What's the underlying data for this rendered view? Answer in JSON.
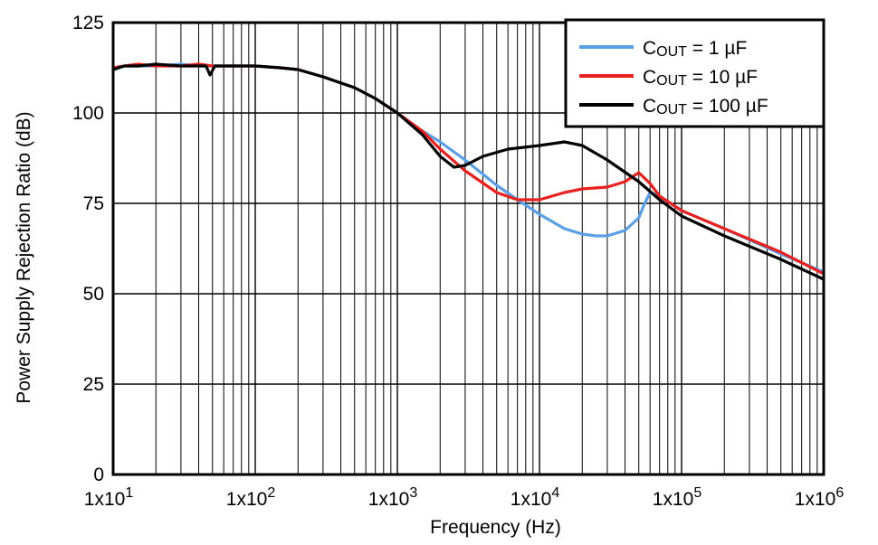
{
  "chart_data": {
    "type": "line",
    "title": "",
    "xlabel": "Frequency (Hz)",
    "ylabel": "Power Supply Rejection Ratio (dB)",
    "x_scale": "log",
    "xlim": [
      10,
      1000000
    ],
    "ylim": [
      0,
      125
    ],
    "grid": true,
    "legend_position": "top-right",
    "x_ticks": [
      {
        "value": 10,
        "label": "1x10"
      },
      {
        "value": 100,
        "label": "1x10"
      },
      {
        "value": 1000,
        "label": "1x10"
      },
      {
        "value": 10000,
        "label": "1x10"
      },
      {
        "value": 100000,
        "label": "1x10"
      },
      {
        "value": 1000000,
        "label": "1x10"
      }
    ],
    "x_tick_exponents": [
      "1",
      "2",
      "3",
      "4",
      "5",
      "6"
    ],
    "y_ticks": [
      0,
      25,
      50,
      75,
      100,
      125
    ],
    "series": [
      {
        "name": "C",
        "name_sub": "OUT",
        "name_suffix": " = 1 µF",
        "color": "#5aa0e6",
        "points": [
          [
            10,
            112
          ],
          [
            12,
            113
          ],
          [
            15,
            113
          ],
          [
            20,
            113
          ],
          [
            30,
            113.5
          ],
          [
            40,
            113
          ],
          [
            50,
            113
          ],
          [
            70,
            113
          ],
          [
            100,
            113
          ],
          [
            150,
            112.5
          ],
          [
            200,
            112
          ],
          [
            300,
            110
          ],
          [
            500,
            107
          ],
          [
            700,
            104
          ],
          [
            1000,
            100
          ],
          [
            1500,
            95
          ],
          [
            2000,
            92
          ],
          [
            3000,
            87
          ],
          [
            5000,
            80
          ],
          [
            7000,
            76
          ],
          [
            10000,
            72
          ],
          [
            15000,
            68
          ],
          [
            20000,
            66.5
          ],
          [
            25000,
            66
          ],
          [
            30000,
            66
          ],
          [
            40000,
            67.5
          ],
          [
            50000,
            71
          ],
          [
            55000,
            75
          ],
          [
            60000,
            78
          ],
          [
            70000,
            77
          ],
          [
            100000,
            73
          ],
          [
            200000,
            68
          ],
          [
            500000,
            61
          ],
          [
            1000000,
            56
          ]
        ]
      },
      {
        "name": "C",
        "name_sub": "OUT",
        "name_suffix": " = 10 µF",
        "color": "#e8201e",
        "points": [
          [
            10,
            112.5
          ],
          [
            12,
            113
          ],
          [
            15,
            113.5
          ],
          [
            20,
            113
          ],
          [
            30,
            113
          ],
          [
            40,
            113.5
          ],
          [
            50,
            113
          ],
          [
            70,
            113
          ],
          [
            100,
            113
          ],
          [
            150,
            112.5
          ],
          [
            200,
            112
          ],
          [
            300,
            110
          ],
          [
            500,
            107
          ],
          [
            700,
            104
          ],
          [
            1000,
            100
          ],
          [
            1500,
            95
          ],
          [
            2000,
            90
          ],
          [
            3000,
            84
          ],
          [
            5000,
            78
          ],
          [
            7000,
            76
          ],
          [
            10000,
            76
          ],
          [
            15000,
            78
          ],
          [
            20000,
            79
          ],
          [
            30000,
            79.5
          ],
          [
            40000,
            81
          ],
          [
            50000,
            83.5
          ],
          [
            60000,
            80.5
          ],
          [
            70000,
            77
          ],
          [
            100000,
            73
          ],
          [
            200000,
            68
          ],
          [
            500000,
            61.5
          ],
          [
            1000000,
            55.5
          ]
        ]
      },
      {
        "name": "C",
        "name_sub": "OUT",
        "name_suffix": " = 100 µF",
        "color": "#000000",
        "points": [
          [
            10,
            112
          ],
          [
            12,
            113
          ],
          [
            15,
            113
          ],
          [
            20,
            113.5
          ],
          [
            30,
            113
          ],
          [
            40,
            113
          ],
          [
            45,
            113
          ],
          [
            48,
            110.5
          ],
          [
            52,
            113
          ],
          [
            70,
            113
          ],
          [
            100,
            113
          ],
          [
            150,
            112.5
          ],
          [
            200,
            112
          ],
          [
            300,
            110
          ],
          [
            500,
            107
          ],
          [
            700,
            104
          ],
          [
            1000,
            100
          ],
          [
            1500,
            94
          ],
          [
            2000,
            88
          ],
          [
            2500,
            85
          ],
          [
            3000,
            85.5
          ],
          [
            4000,
            88
          ],
          [
            6000,
            90
          ],
          [
            10000,
            91
          ],
          [
            15000,
            92
          ],
          [
            20000,
            91
          ],
          [
            30000,
            87
          ],
          [
            50000,
            81
          ],
          [
            70000,
            76
          ],
          [
            100000,
            71.5
          ],
          [
            200000,
            66
          ],
          [
            500000,
            59.5
          ],
          [
            1000000,
            54
          ]
        ]
      }
    ]
  }
}
